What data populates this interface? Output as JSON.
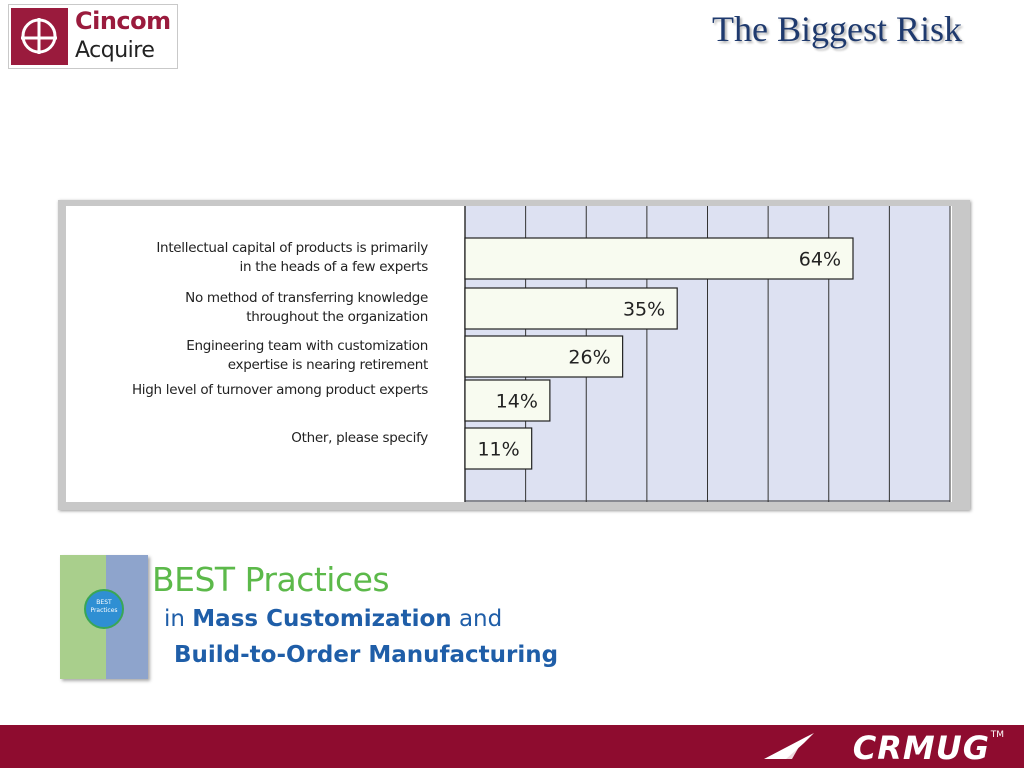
{
  "logo": {
    "name": "Cincom",
    "product": "Acquire",
    "mark": "cincom-logo-icon"
  },
  "title": "The Biggest Risk",
  "chart_data": {
    "type": "bar",
    "orientation": "horizontal",
    "categories": [
      [
        "Intellectual capital of products is primarily",
        "in the heads of a few experts"
      ],
      [
        "No method of transferring knowledge",
        "throughout the organization"
      ],
      [
        "Engineering team with customization",
        "expertise is nearing retirement"
      ],
      [
        "High level of turnover among product experts"
      ],
      [
        "Other, please specify"
      ]
    ],
    "values": [
      64,
      35,
      26,
      14,
      11
    ],
    "value_labels": [
      "64%",
      "35%",
      "26%",
      "14%",
      "11%"
    ],
    "xlim": [
      0,
      80
    ],
    "grid": true,
    "plot_background": "#dde1f2",
    "bar_fill": "#f8fbf0"
  },
  "best_practices": {
    "heading": "BEST Practices",
    "line2_prefix": "in ",
    "line2_bold": "Mass Customization",
    "line2_suffix": " and",
    "line3": "Build-to-Order Manufacturing",
    "book_text": "BEST Practices"
  },
  "footer": {
    "brand": "CRMUG",
    "tm": "TM",
    "color": "#8e0c2f"
  }
}
